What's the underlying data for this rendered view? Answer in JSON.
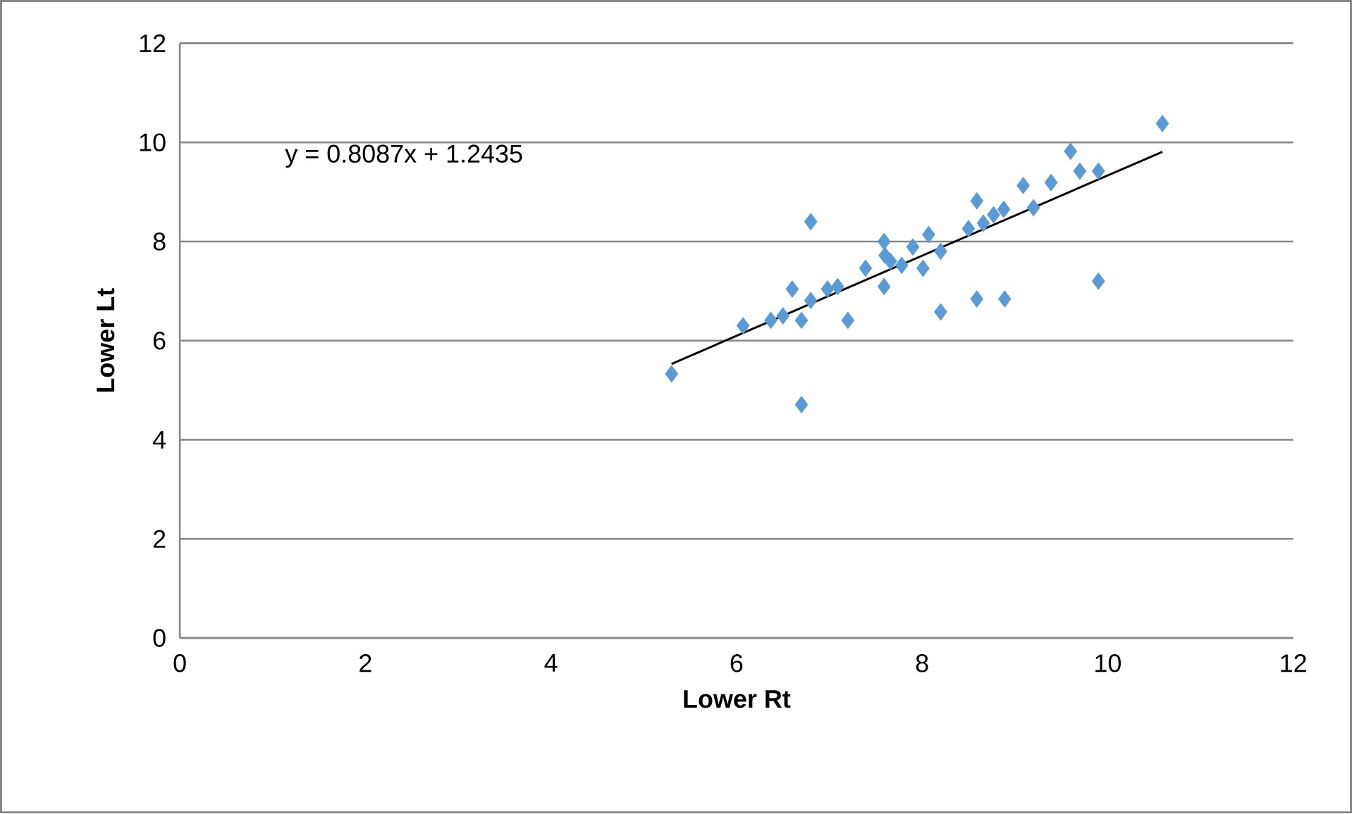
{
  "chart_data": {
    "type": "scatter",
    "xlabel": "Lower Rt",
    "ylabel": "Lower Lt",
    "xlim": [
      0,
      12
    ],
    "ylim": [
      0,
      12
    ],
    "xticks": [
      0,
      2,
      4,
      6,
      8,
      10,
      12
    ],
    "yticks": [
      0,
      2,
      4,
      6,
      8,
      10,
      12
    ],
    "grid": "y",
    "annotations": [
      "y = 0.8087x + 1.2435"
    ],
    "series": [
      {
        "color": "#5b9bd5",
        "marker": "diamond",
        "x": [
          5.3,
          6.07,
          6.37,
          6.5,
          6.6,
          6.7,
          6.7,
          6.8,
          6.8,
          6.98,
          7.09,
          7.2,
          7.39,
          7.59,
          7.59,
          7.6,
          7.66,
          7.78,
          7.9,
          8.01,
          8.07,
          8.2,
          8.2,
          8.5,
          8.59,
          8.59,
          8.66,
          8.77,
          8.88,
          8.89,
          9.09,
          9.2,
          9.39,
          9.6,
          9.7,
          9.9,
          9.9,
          10.59
        ],
        "values": [
          5.33,
          6.3,
          6.41,
          6.5,
          7.04,
          6.41,
          4.71,
          8.4,
          6.81,
          7.04,
          7.09,
          6.41,
          7.46,
          8.0,
          7.09,
          7.72,
          7.6,
          7.52,
          7.89,
          7.46,
          8.14,
          7.8,
          6.58,
          8.26,
          8.82,
          6.84,
          8.37,
          8.54,
          8.65,
          6.84,
          9.13,
          8.68,
          9.19,
          9.82,
          9.42,
          9.42,
          7.2,
          10.38
        ]
      },
      {
        "type": "line",
        "color": "#000000",
        "marker": "none",
        "x": [
          5.3,
          10.59
        ],
        "values": [
          5.53,
          9.81
        ]
      }
    ]
  }
}
